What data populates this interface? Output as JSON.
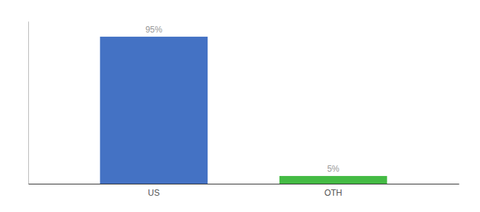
{
  "chart_data": {
    "type": "bar",
    "categories": [
      "US",
      "OTH"
    ],
    "values": [
      95,
      5
    ],
    "value_labels": [
      "95%",
      "5%"
    ],
    "colors": [
      "#4472c4",
      "#44bb44"
    ],
    "ylim": [
      0,
      105
    ],
    "data_labels": true,
    "tick_labels": "x"
  }
}
